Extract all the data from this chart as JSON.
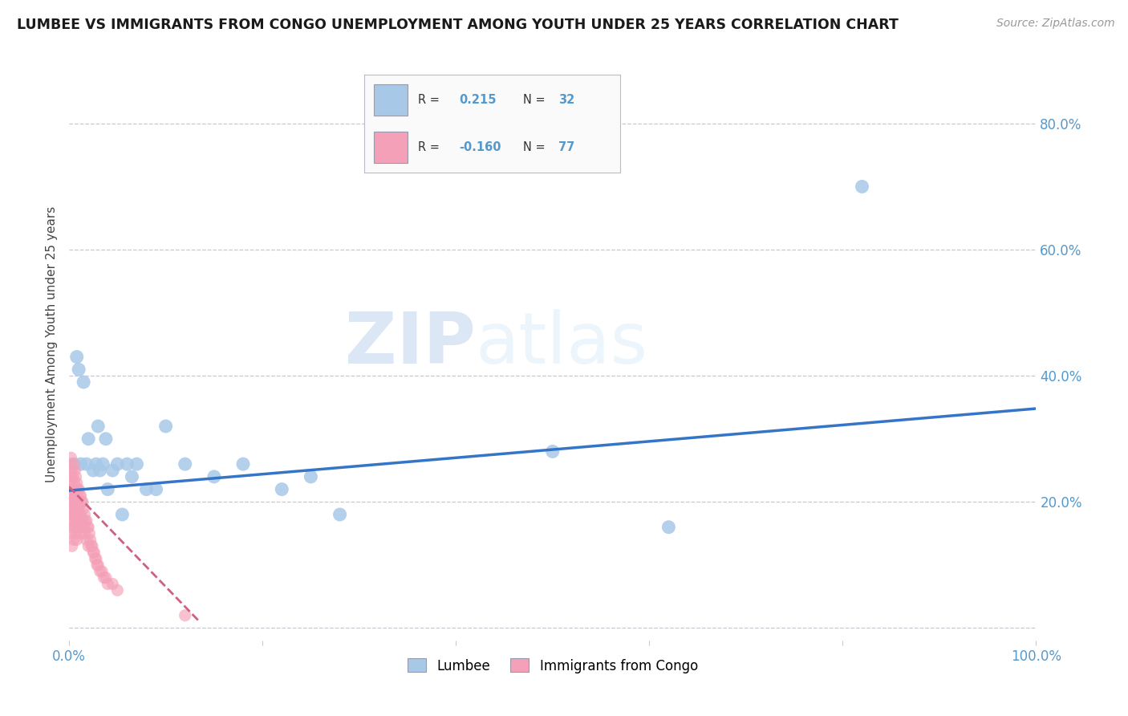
{
  "title": "LUMBEE VS IMMIGRANTS FROM CONGO UNEMPLOYMENT AMONG YOUTH UNDER 25 YEARS CORRELATION CHART",
  "source": "Source: ZipAtlas.com",
  "ylabel": "Unemployment Among Youth under 25 years",
  "xlim": [
    0.0,
    1.0
  ],
  "ylim": [
    -0.02,
    0.92
  ],
  "ytick_vals": [
    0.0,
    0.2,
    0.4,
    0.6,
    0.8
  ],
  "ytick_labels": [
    "",
    "20.0%",
    "40.0%",
    "60.0%",
    "80.0%"
  ],
  "xtick_vals": [
    0.0,
    0.2,
    0.4,
    0.6,
    0.8,
    1.0
  ],
  "xtick_labels": [
    "0.0%",
    "",
    "",
    "",
    "",
    "100.0%"
  ],
  "lumbee_color": "#a8c8e8",
  "congo_color": "#f4a0b8",
  "lumbee_line_color": "#3575c8",
  "congo_line_color": "#d06080",
  "background_color": "#ffffff",
  "grid_color": "#c8c8d0",
  "tick_color": "#5599cc",
  "R_lumbee": 0.215,
  "N_lumbee": 32,
  "R_congo": -0.16,
  "N_congo": 77,
  "lumbee_x": [
    0.005,
    0.008,
    0.01,
    0.012,
    0.015,
    0.018,
    0.02,
    0.025,
    0.028,
    0.03,
    0.032,
    0.035,
    0.038,
    0.04,
    0.045,
    0.05,
    0.055,
    0.06,
    0.065,
    0.07,
    0.08,
    0.09,
    0.1,
    0.12,
    0.15,
    0.18,
    0.22,
    0.25,
    0.28,
    0.5,
    0.62,
    0.82
  ],
  "lumbee_y": [
    0.26,
    0.43,
    0.41,
    0.26,
    0.39,
    0.26,
    0.3,
    0.25,
    0.26,
    0.32,
    0.25,
    0.26,
    0.3,
    0.22,
    0.25,
    0.26,
    0.18,
    0.26,
    0.24,
    0.26,
    0.22,
    0.22,
    0.32,
    0.26,
    0.24,
    0.26,
    0.22,
    0.24,
    0.18,
    0.28,
    0.16,
    0.7
  ],
  "congo_x": [
    0.001,
    0.001,
    0.001,
    0.001,
    0.002,
    0.002,
    0.002,
    0.002,
    0.002,
    0.003,
    0.003,
    0.003,
    0.003,
    0.003,
    0.004,
    0.004,
    0.004,
    0.005,
    0.005,
    0.005,
    0.005,
    0.005,
    0.006,
    0.006,
    0.006,
    0.006,
    0.007,
    0.007,
    0.007,
    0.007,
    0.008,
    0.008,
    0.008,
    0.008,
    0.009,
    0.009,
    0.009,
    0.01,
    0.01,
    0.01,
    0.011,
    0.011,
    0.012,
    0.012,
    0.012,
    0.013,
    0.013,
    0.014,
    0.014,
    0.015,
    0.015,
    0.016,
    0.016,
    0.017,
    0.018,
    0.018,
    0.019,
    0.02,
    0.02,
    0.021,
    0.022,
    0.023,
    0.024,
    0.025,
    0.026,
    0.027,
    0.028,
    0.029,
    0.03,
    0.032,
    0.034,
    0.036,
    0.038,
    0.04,
    0.045,
    0.05,
    0.12
  ],
  "congo_y": [
    0.26,
    0.23,
    0.2,
    0.17,
    0.27,
    0.24,
    0.21,
    0.18,
    0.15,
    0.25,
    0.22,
    0.19,
    0.16,
    0.13,
    0.24,
    0.21,
    0.18,
    0.26,
    0.23,
    0.2,
    0.17,
    0.14,
    0.25,
    0.22,
    0.19,
    0.16,
    0.24,
    0.21,
    0.18,
    0.15,
    0.23,
    0.2,
    0.17,
    0.14,
    0.22,
    0.19,
    0.16,
    0.22,
    0.19,
    0.16,
    0.21,
    0.18,
    0.21,
    0.18,
    0.15,
    0.2,
    0.17,
    0.2,
    0.17,
    0.19,
    0.16,
    0.18,
    0.15,
    0.17,
    0.17,
    0.14,
    0.16,
    0.16,
    0.13,
    0.15,
    0.14,
    0.13,
    0.13,
    0.12,
    0.12,
    0.11,
    0.11,
    0.1,
    0.1,
    0.09,
    0.09,
    0.08,
    0.08,
    0.07,
    0.07,
    0.06,
    0.02
  ],
  "lumbee_trendline_x": [
    0.0,
    1.0
  ],
  "lumbee_trendline_y": [
    0.218,
    0.348
  ],
  "congo_trendline_x": [
    0.0,
    0.135
  ],
  "congo_trendline_y": [
    0.224,
    0.01
  ],
  "watermark_zip": "ZIP",
  "watermark_atlas": "atlas",
  "legend_label_lumbee": "Lumbee",
  "legend_label_congo": "Immigrants from Congo"
}
